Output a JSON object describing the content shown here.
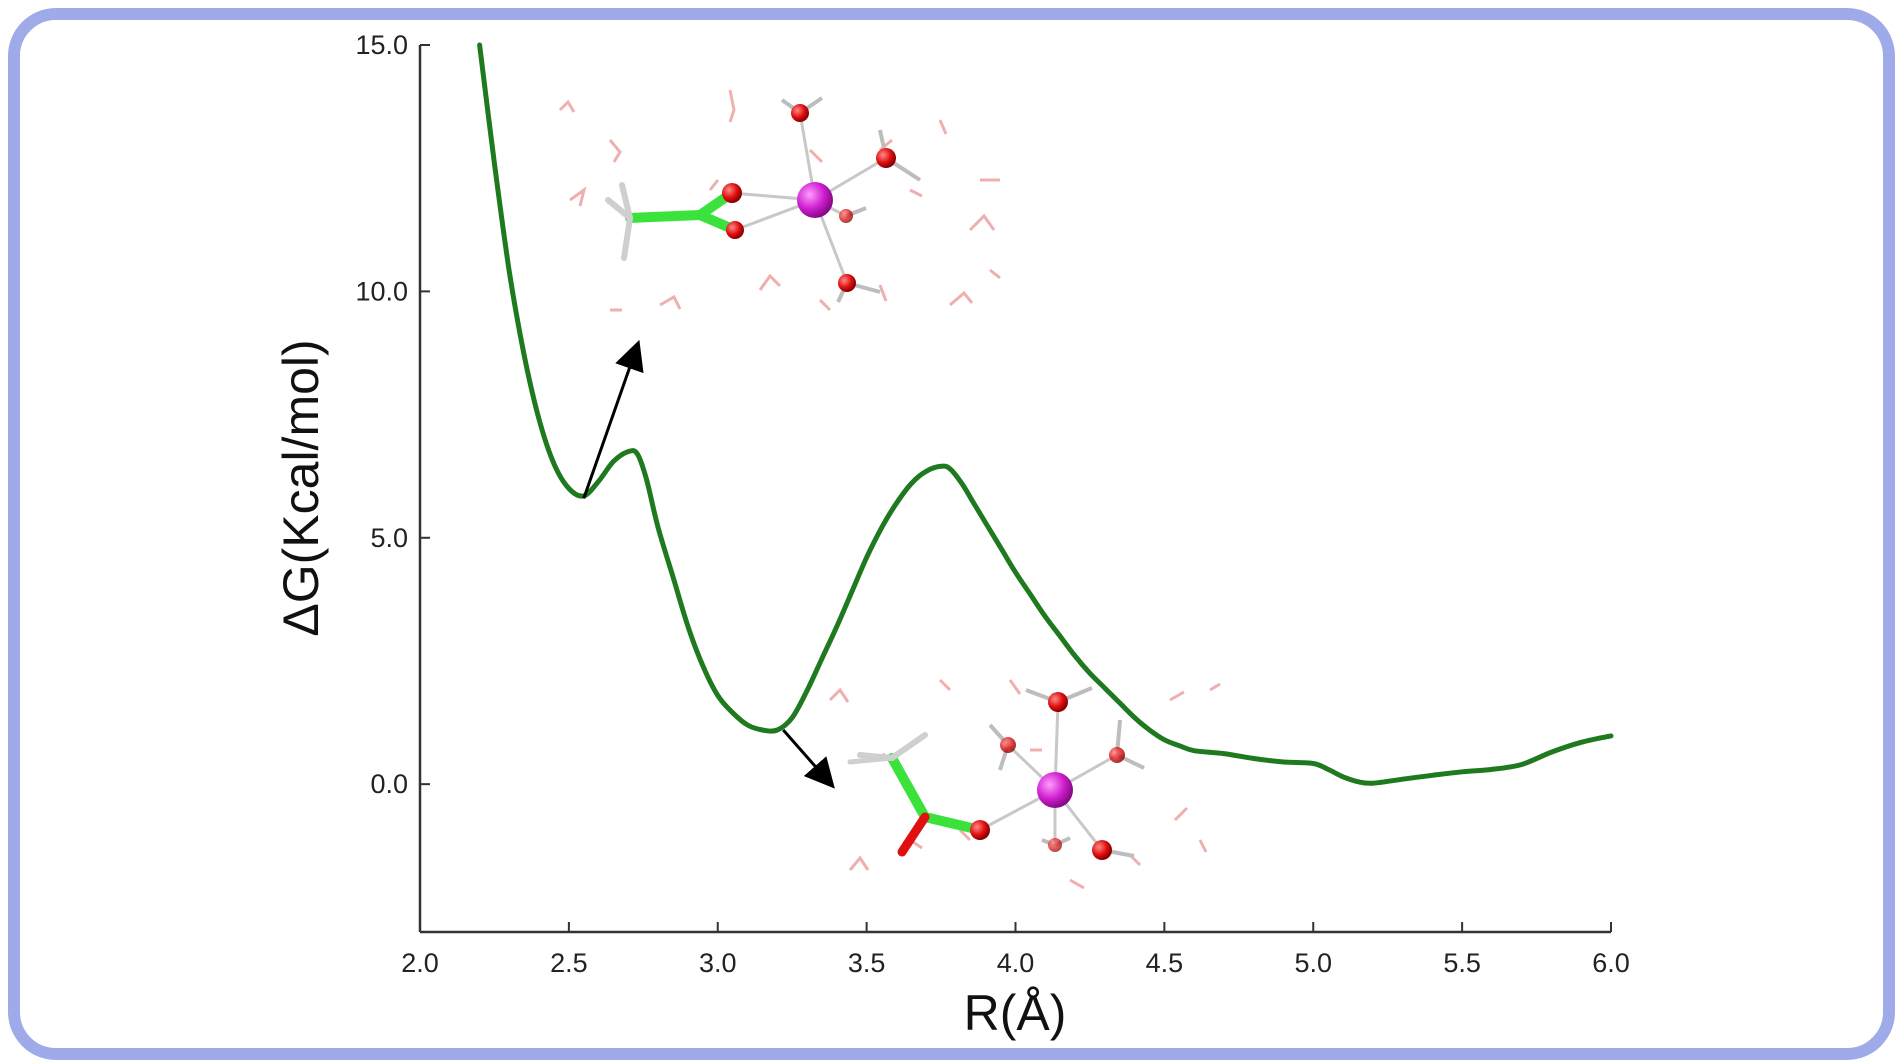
{
  "chart_data": {
    "type": "line",
    "title": "",
    "xlabel": "R(Å)",
    "ylabel": "ΔG(Kcal/mol)",
    "xlim": [
      2.0,
      6.0
    ],
    "ylim": [
      -3.0,
      15.0
    ],
    "xticks": [
      "2.0",
      "2.5",
      "3.0",
      "3.5",
      "4.0",
      "4.5",
      "5.0",
      "5.5",
      "6.0"
    ],
    "yticks": [
      "0.0",
      "5.0",
      "10.0",
      "15.0"
    ],
    "grid": false,
    "series": [
      {
        "color": "#1f7a1f",
        "x": [
          2.2,
          2.25,
          2.3,
          2.35,
          2.4,
          2.45,
          2.5,
          2.55,
          2.6,
          2.65,
          2.7,
          2.73,
          2.76,
          2.8,
          2.85,
          2.9,
          2.95,
          3.0,
          3.05,
          3.1,
          3.15,
          3.2,
          3.25,
          3.3,
          3.35,
          3.4,
          3.45,
          3.5,
          3.55,
          3.6,
          3.65,
          3.7,
          3.75,
          3.78,
          3.82,
          3.86,
          3.9,
          3.95,
          4.0,
          4.05,
          4.1,
          4.15,
          4.2,
          4.25,
          4.3,
          4.35,
          4.4,
          4.45,
          4.5,
          4.55,
          4.6,
          4.7,
          4.8,
          4.9,
          5.0,
          5.05,
          5.1,
          5.15,
          5.2,
          5.3,
          5.4,
          5.5,
          5.6,
          5.7,
          5.8,
          5.9,
          6.0
        ],
        "y": [
          15.0,
          12.6,
          10.4,
          8.7,
          7.4,
          6.5,
          6.0,
          5.85,
          6.15,
          6.55,
          6.75,
          6.7,
          6.2,
          5.2,
          4.2,
          3.2,
          2.4,
          1.8,
          1.45,
          1.2,
          1.1,
          1.1,
          1.35,
          1.9,
          2.55,
          3.2,
          3.9,
          4.6,
          5.2,
          5.7,
          6.1,
          6.35,
          6.45,
          6.4,
          6.1,
          5.7,
          5.3,
          4.8,
          4.3,
          3.85,
          3.4,
          3.0,
          2.6,
          2.25,
          1.95,
          1.65,
          1.35,
          1.1,
          0.9,
          0.78,
          0.68,
          0.62,
          0.52,
          0.45,
          0.42,
          0.3,
          0.15,
          0.05,
          0.02,
          0.1,
          0.18,
          0.25,
          0.3,
          0.4,
          0.65,
          0.85,
          0.98
        ]
      }
    ],
    "annotations": [
      {
        "from": [
          2.55,
          5.8
        ],
        "to": [
          2.73,
          8.9
        ],
        "label": "",
        "color": "#000000"
      },
      {
        "from": [
          3.22,
          1.1
        ],
        "to": [
          3.38,
          0.0
        ],
        "label": "",
        "color": "#000000"
      }
    ]
  },
  "insets": [
    {
      "name": "contact-ion-pair-structure",
      "colors": {
        "ion": "#cc22cc",
        "oxygen": "#e01010",
        "carbon": "#33dd33",
        "hydrogen": "#bbbbbb",
        "water": "#e8a0a0"
      }
    },
    {
      "name": "solvent-separated-structure",
      "colors": {
        "ion": "#cc22cc",
        "oxygen": "#e01010",
        "carbon": "#33dd33",
        "hydrogen": "#bbbbbb",
        "water": "#e8a0a0"
      }
    }
  ]
}
